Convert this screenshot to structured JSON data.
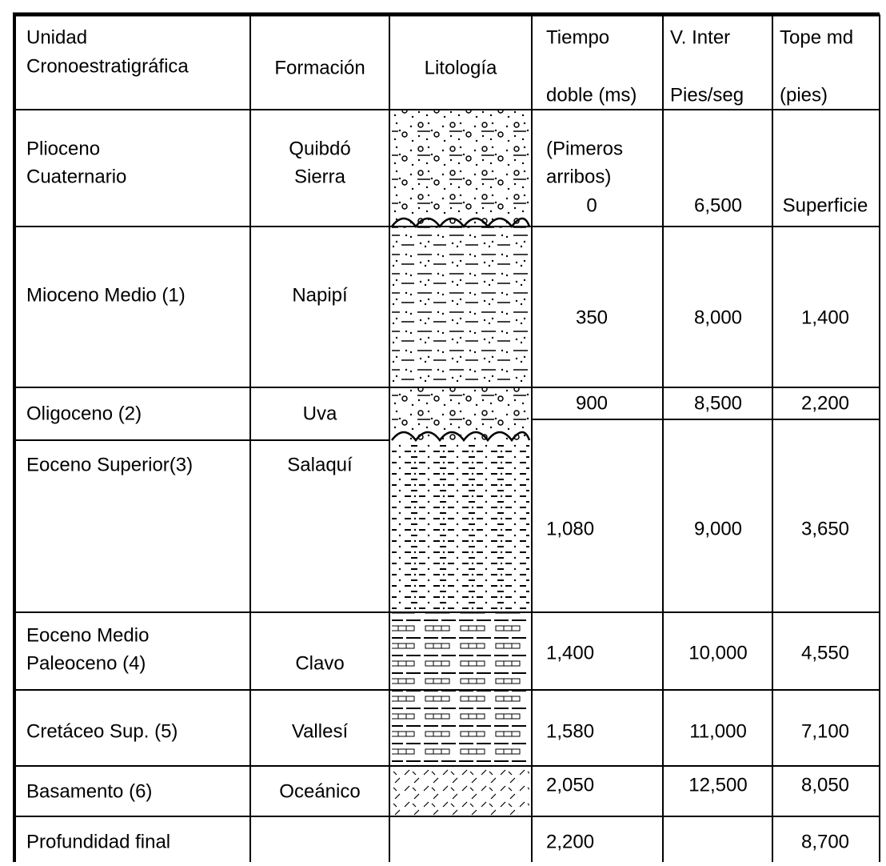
{
  "table": {
    "header": [
      [
        "Unidad",
        "Cronoestratigráfica"
      ],
      [
        "Formación"
      ],
      [
        "Litología"
      ],
      [
        "Tiempo",
        "doble (ms)"
      ],
      [
        "V. Inter",
        "Pies/seg"
      ],
      [
        "Tope md",
        "(pies)"
      ]
    ],
    "rows": [
      [
        [
          "Plioceno",
          "Cuaternario"
        ],
        [
          "Quibdó",
          "Sierra"
        ],
        null,
        [
          "(Pimeros",
          "arribos)",
          "0"
        ],
        [
          "6,500"
        ],
        [
          "Superficie"
        ]
      ],
      [
        [
          "Mioceno Medio (1)"
        ],
        [
          "Napipí"
        ],
        null,
        [
          "350"
        ],
        [
          "8,000"
        ],
        [
          "1,400"
        ]
      ],
      [
        [
          "Oligoceno (2)"
        ],
        [
          "Uva"
        ],
        null,
        [
          "900"
        ],
        [
          "8,500"
        ],
        [
          "2,200"
        ]
      ],
      [
        [
          "Eoceno Superior(3)"
        ],
        [
          "Salaquí"
        ],
        null,
        [
          "1,080"
        ],
        [
          "9,000"
        ],
        [
          "3,650"
        ]
      ],
      [
        [
          "Eoceno Medio",
          "Paleoceno (4)"
        ],
        [
          "Clavo"
        ],
        null,
        [
          "1,400"
        ],
        [
          "10,000"
        ],
        [
          "4,550"
        ]
      ],
      [
        [
          "Cretáceo Sup. (5)"
        ],
        [
          "Vallesí"
        ],
        null,
        [
          "1,580"
        ],
        [
          "11,000"
        ],
        [
          "7,100"
        ]
      ],
      [
        [
          "Basamento (6)"
        ],
        [
          "Oceánico"
        ],
        null,
        [
          "2,050"
        ],
        [
          "12,500"
        ],
        [
          "8,050"
        ]
      ],
      [
        [
          "Profundidad final"
        ],
        null,
        null,
        [
          "2,200"
        ],
        null,
        [
          "8,700"
        ]
      ]
    ]
  }
}
